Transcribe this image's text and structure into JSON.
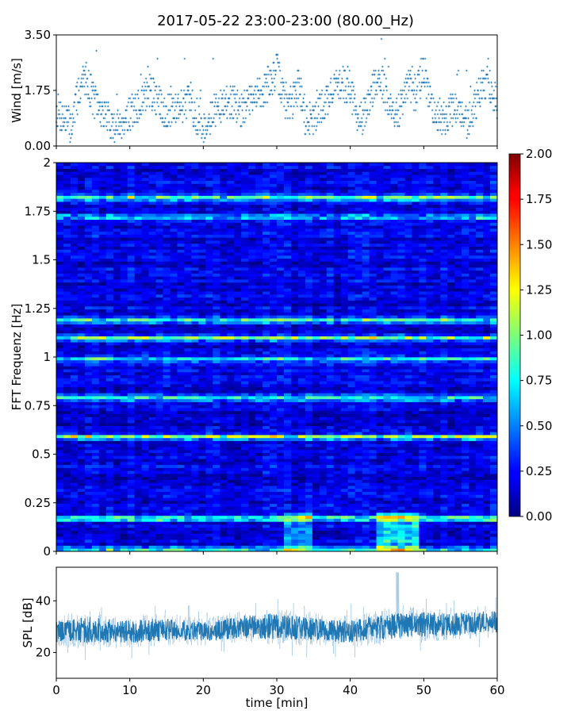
{
  "title": "2017-05-22 23:00-23:00 (80.00_Hz)",
  "chart_data": [
    {
      "panel": "wind",
      "type": "scatter",
      "ylabel": "Wind [m/s]",
      "ylim": [
        0,
        3.5
      ],
      "yticks": [
        "0.00",
        "1.75",
        "3.50"
      ],
      "xlim": [
        0,
        60
      ],
      "marker_color": "#1f77b4",
      "series": [
        {
          "name": "Wind",
          "x": [
            0,
            1,
            2,
            3,
            4,
            5,
            6,
            7,
            8,
            9,
            10,
            11,
            12,
            13,
            14,
            15,
            16,
            17,
            18,
            19,
            20,
            21,
            22,
            23,
            24,
            25,
            26,
            27,
            28,
            29,
            30,
            31,
            32,
            33,
            34,
            35,
            36,
            37,
            38,
            39,
            40,
            41,
            42,
            43,
            44,
            45,
            46,
            47,
            48,
            49,
            50,
            51,
            52,
            53,
            54,
            55,
            56,
            57,
            58,
            59,
            60
          ],
          "y": [
            1.1,
            0.9,
            0.6,
            1.7,
            2.2,
            1.5,
            1.1,
            0.9,
            0.6,
            0.8,
            1.0,
            1.2,
            1.6,
            1.7,
            1.3,
            1.1,
            1.2,
            1.3,
            1.4,
            1.0,
            0.5,
            1.0,
            1.2,
            1.3,
            1.4,
            1.1,
            1.3,
            1.5,
            1.7,
            2.0,
            2.4,
            1.5,
            1.3,
            2.0,
            0.8,
            0.8,
            1.2,
            1.5,
            1.9,
            2.0,
            1.7,
            1.0,
            0.9,
            1.8,
            2.3,
            1.5,
            0.9,
            1.3,
            1.9,
            1.6,
            2.5,
            1.3,
            1.0,
            0.9,
            1.2,
            0.9,
            0.8,
            1.3,
            2.0,
            1.9,
            1.4
          ]
        }
      ]
    },
    {
      "panel": "spectrogram",
      "type": "heatmap",
      "ylabel": "FFT Frequenz [Hz]",
      "ylim": [
        0,
        2
      ],
      "yticks": [
        "0",
        "0.25",
        "0.5",
        "0.75",
        "1",
        "1.25",
        "1.5",
        "1.75",
        "2"
      ],
      "xlim": [
        0,
        60
      ],
      "colorbar": {
        "range": [
          0,
          2
        ],
        "ticks": [
          "0.00",
          "0.25",
          "0.50",
          "0.75",
          "1.00",
          "1.25",
          "1.50",
          "1.75",
          "2.00"
        ],
        "colormap": "jet"
      },
      "bands": [
        {
          "freq": 0.01,
          "base": 0.85
        },
        {
          "freq": 0.17,
          "base": 1.0
        },
        {
          "freq": 0.59,
          "base": 1.05
        },
        {
          "freq": 0.79,
          "base": 0.75
        },
        {
          "freq": 0.99,
          "base": 0.7
        },
        {
          "freq": 1.1,
          "base": 0.85
        },
        {
          "freq": 1.19,
          "base": 0.8
        },
        {
          "freq": 1.72,
          "base": 0.75
        },
        {
          "freq": 1.82,
          "base": 1.0
        }
      ]
    },
    {
      "panel": "spl",
      "type": "line",
      "ylabel": "SPL [dB]",
      "xlabel": "time [min]",
      "ylim": [
        10,
        53
      ],
      "yticks": [
        "20",
        "40"
      ],
      "xlim": [
        0,
        60
      ],
      "xticks": [
        "0",
        "10",
        "20",
        "30",
        "40",
        "50",
        "60"
      ],
      "line_color": "#1f77b4",
      "series": [
        {
          "name": "SPL",
          "x": [
            0,
            5,
            10,
            15,
            20,
            25,
            30,
            35,
            40,
            45,
            50,
            55,
            60
          ],
          "y": [
            28,
            29,
            28,
            29,
            28,
            30,
            30,
            29,
            28,
            30,
            31,
            31,
            32
          ],
          "spread": [
            7,
            8,
            7,
            7,
            6,
            7,
            8,
            7,
            7,
            8,
            8,
            7,
            7
          ]
        }
      ]
    }
  ]
}
